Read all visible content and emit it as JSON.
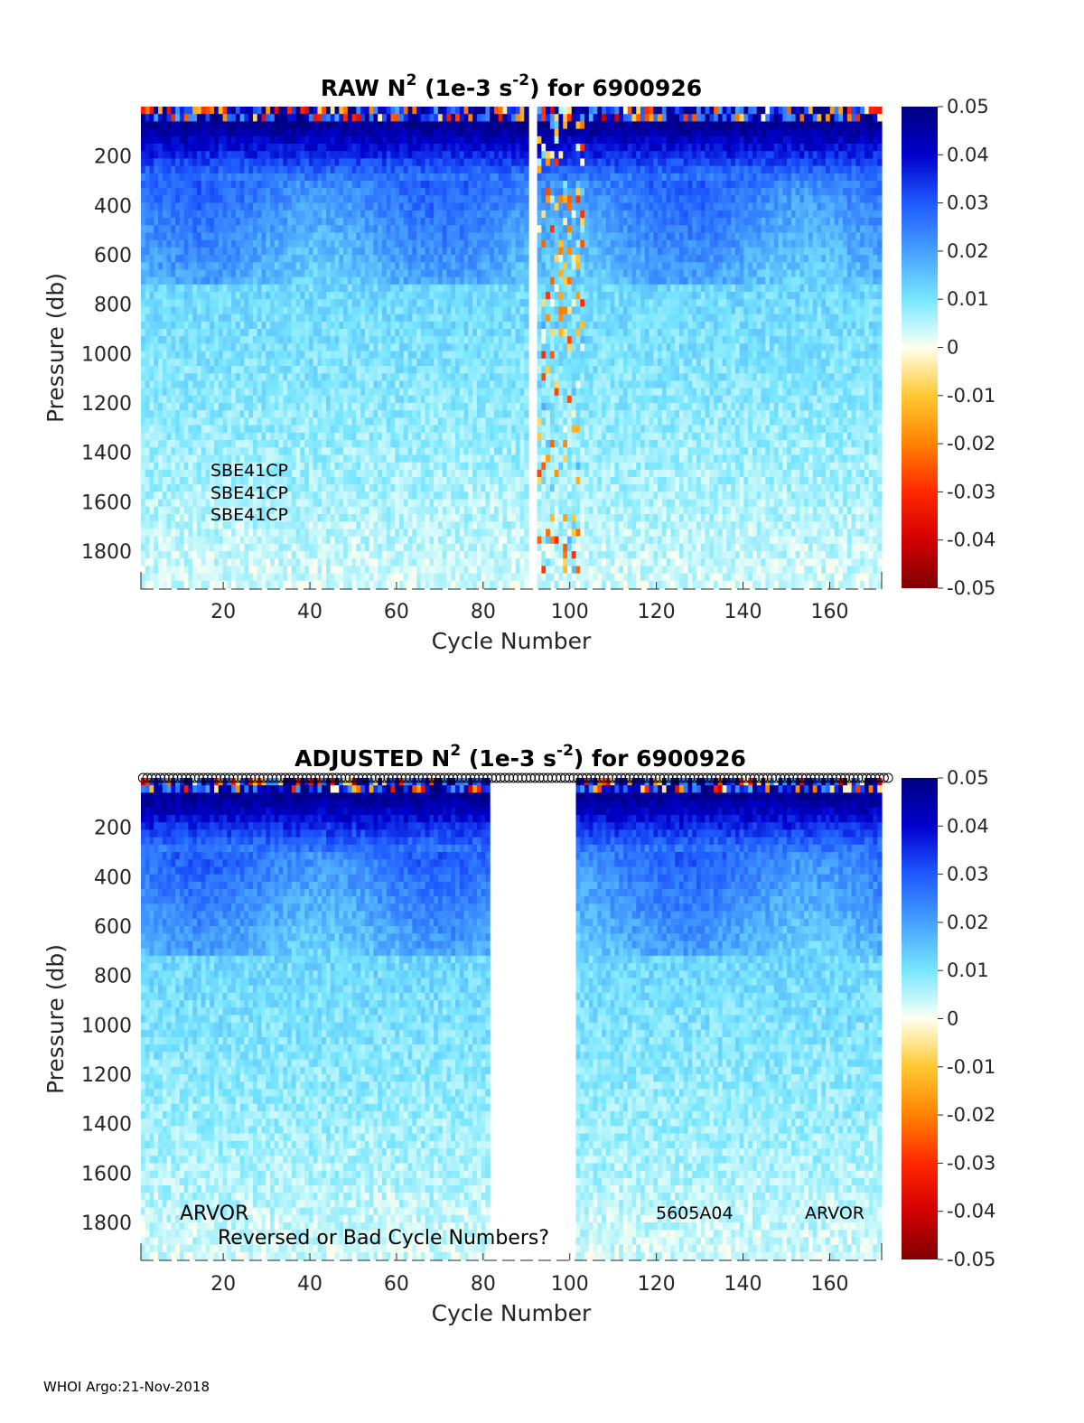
{
  "footer": "WHOI Argo:21-Nov-2018",
  "chart_data": [
    {
      "type": "heatmap",
      "title_prefix": "RAW N",
      "title_sup": "2",
      "title_mid": " (1e-3 s",
      "title_sup2": "-2",
      "title_suffix": ") for 6900926",
      "xlabel": "Cycle Number",
      "ylabel": "Pressure (db)",
      "xlim": [
        1,
        172
      ],
      "ylim": [
        0,
        1950
      ],
      "y_reversed": true,
      "xticks": [
        "20",
        "40",
        "60",
        "80",
        "100",
        "120",
        "140",
        "160"
      ],
      "yticks": [
        "200",
        "400",
        "600",
        "800",
        "1000",
        "1200",
        "1400",
        "1600",
        "1800"
      ],
      "colorbar_ticks": [
        "0.05",
        "0.04",
        "0.03",
        "0.02",
        "0.01",
        "0",
        "-0.01",
        "-0.02",
        "-0.03",
        "-0.04",
        "-0.05"
      ],
      "clim": [
        -0.05,
        0.05
      ],
      "colormap": "jet-with-white-center",
      "missing_cycles": [
        [
          91,
          92
        ]
      ],
      "noisy_cycles": [
        [
          93,
          103
        ]
      ],
      "annotations": [
        "SBE41CP",
        "SBE41CP",
        "SBE41CP"
      ]
    },
    {
      "type": "heatmap",
      "title_prefix": "ADJUSTED N",
      "title_sup": "2",
      "title_mid": " (1e-3 s",
      "title_sup2": "-2",
      "title_suffix": ") for 6900926",
      "xlabel": "Cycle Number",
      "ylabel": "Pressure (db)",
      "xlim": [
        1,
        172
      ],
      "ylim": [
        0,
        1950
      ],
      "y_reversed": true,
      "xticks": [
        "20",
        "40",
        "60",
        "80",
        "100",
        "120",
        "140",
        "160"
      ],
      "yticks": [
        "200",
        "400",
        "600",
        "800",
        "1000",
        "1200",
        "1400",
        "1600",
        "1800"
      ],
      "colorbar_ticks": [
        "0.05",
        "0.04",
        "0.03",
        "0.02",
        "0.01",
        "0",
        "-0.01",
        "-0.02",
        "-0.03",
        "-0.04",
        "-0.05"
      ],
      "clim": [
        -0.05,
        0.05
      ],
      "colormap": "jet-with-white-center",
      "missing_cycles": [
        [
          82,
          101
        ]
      ],
      "cycle_markers": "open circles along top for each cycle",
      "annotations": [
        "ARVOR",
        "Reversed or Bad Cycle Numbers?",
        "5605A04",
        "ARVOR"
      ]
    }
  ]
}
